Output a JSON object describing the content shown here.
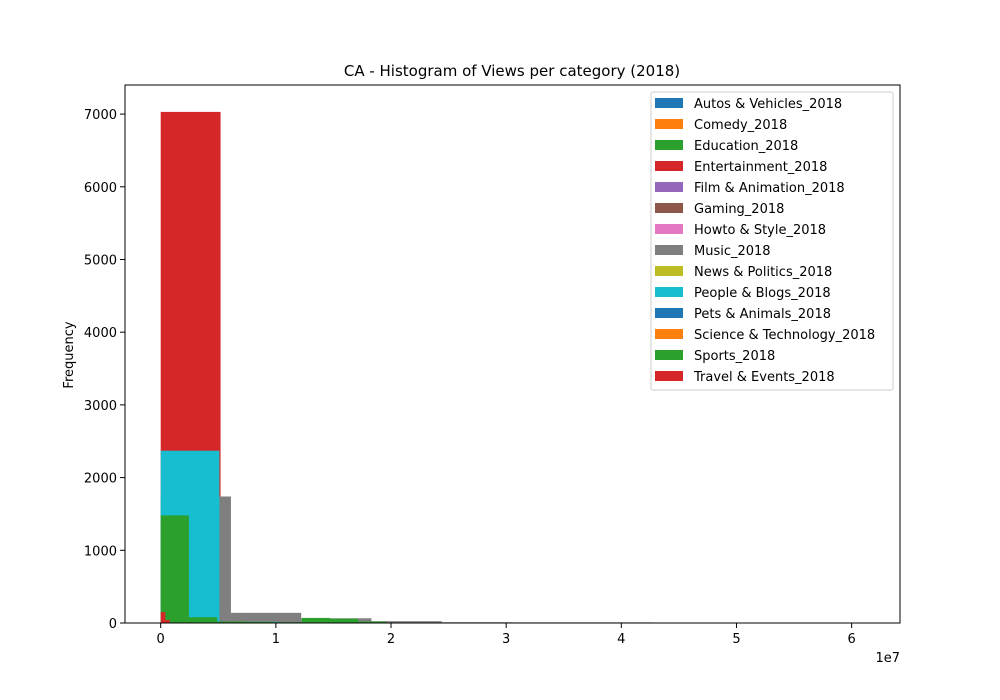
{
  "chart_data": {
    "type": "bar",
    "title": "CA - Histogram of Views per category (2018)",
    "xlabel": "",
    "ylabel": "Frequency",
    "x_offset_text": "1e7",
    "x_scale": 10000000,
    "xlim": [
      -3100000,
      64200000
    ],
    "ylim": [
      0,
      7400
    ],
    "x_ticks": [
      0,
      10000000,
      20000000,
      30000000,
      40000000,
      50000000,
      60000000
    ],
    "x_tick_labels": [
      "0",
      "1",
      "2",
      "3",
      "4",
      "5",
      "6"
    ],
    "y_ticks": [
      0,
      1000,
      2000,
      3000,
      4000,
      5000,
      6000,
      7000
    ],
    "y_tick_labels": [
      "0",
      "1000",
      "2000",
      "3000",
      "4000",
      "5000",
      "6000",
      "7000"
    ],
    "grid": false,
    "legend_position": "top-right",
    "series": [
      {
        "name": "Autos & Vehicles_2018",
        "color": "#1f77b4",
        "bins": [
          [
            0,
            300000,
            20
          ]
        ]
      },
      {
        "name": "Comedy_2018",
        "color": "#ff7f0e",
        "bins": [
          [
            0,
            500000,
            30
          ]
        ]
      },
      {
        "name": "Education_2018",
        "color": "#2ca02c",
        "bins": [
          [
            0,
            400000,
            15
          ]
        ]
      },
      {
        "name": "Entertainment_2018",
        "color": "#d62728",
        "bins": [
          [
            0,
            5200000,
            7030
          ],
          [
            5200000,
            10400000,
            45
          ],
          [
            10400000,
            15600000,
            15
          ],
          [
            15600000,
            20800000,
            5
          ]
        ]
      },
      {
        "name": "Film & Animation_2018",
        "color": "#9467bd",
        "bins": [
          [
            0,
            1500000,
            25
          ]
        ]
      },
      {
        "name": "Gaming_2018",
        "color": "#8c564b",
        "bins": [
          [
            0,
            1000000,
            20
          ]
        ]
      },
      {
        "name": "Howto & Style_2018",
        "color": "#e377c2",
        "bins": [
          [
            0,
            600000,
            15
          ]
        ]
      },
      {
        "name": "Music_2018",
        "color": "#7f7f7f",
        "bins": [
          [
            0,
            6100000,
            1740
          ],
          [
            6100000,
            12200000,
            140
          ],
          [
            12200000,
            18300000,
            65
          ],
          [
            18300000,
            24400000,
            25
          ],
          [
            24400000,
            30500000,
            10
          ],
          [
            30500000,
            36600000,
            5
          ],
          [
            36600000,
            42700000,
            3
          ]
        ]
      },
      {
        "name": "News & Politics_2018",
        "color": "#bcbd22",
        "bins": [
          [
            0,
            800000,
            20
          ]
        ]
      },
      {
        "name": "People & Blogs_2018",
        "color": "#17becf",
        "bins": [
          [
            0,
            5100000,
            2370
          ],
          [
            5100000,
            10200000,
            15
          ],
          [
            10200000,
            15300000,
            5
          ]
        ]
      },
      {
        "name": "Pets & Animals_2018",
        "color": "#1f77b4",
        "bins": [
          [
            0,
            200000,
            10
          ]
        ]
      },
      {
        "name": "Science & Technology_2018",
        "color": "#ff7f0e",
        "bins": [
          [
            0,
            700000,
            15
          ]
        ]
      },
      {
        "name": "Sports_2018",
        "color": "#2ca02c",
        "bins": [
          [
            0,
            2450000,
            1480
          ],
          [
            2450000,
            4900000,
            80
          ],
          [
            4900000,
            7350000,
            20
          ],
          [
            7350000,
            9800000,
            15
          ],
          [
            9800000,
            12250000,
            10
          ],
          [
            12250000,
            14700000,
            70
          ],
          [
            14700000,
            17150000,
            60
          ],
          [
            17150000,
            19600000,
            20
          ]
        ]
      },
      {
        "name": "Travel & Events_2018",
        "color": "#d62728",
        "bins": [
          [
            0,
            400000,
            150
          ],
          [
            400000,
            800000,
            40
          ]
        ]
      }
    ]
  }
}
